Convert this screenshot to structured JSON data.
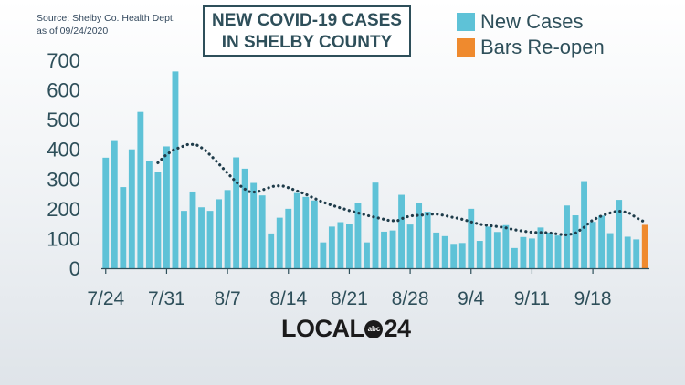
{
  "source": {
    "line1": "Source:  Shelby Co. Health Dept.",
    "line2": "as of 09/24/2020"
  },
  "title": {
    "line1": "NEW COVID-19 CASES",
    "line2": "IN SHELBY COUNTY"
  },
  "legend": {
    "new_cases": "New Cases",
    "bars_reopen": "Bars Re-open"
  },
  "colors": {
    "new_cases": "#5ec2d7",
    "bars_reopen": "#ef8a2e",
    "trend": "#1f3c4a",
    "text": "#2e4f5a"
  },
  "logo": {
    "word": "LOCAL",
    "badge": "abc",
    "number": "24"
  },
  "chart_data": {
    "type": "bar",
    "start_date": "7/24",
    "x_tick_labels": [
      "7/24",
      "7/31",
      "8/7",
      "8/14",
      "8/21",
      "8/28",
      "9/4",
      "9/11",
      "9/18"
    ],
    "y_tick_labels": [
      "0",
      "100",
      "200",
      "300",
      "400",
      "500",
      "600",
      "700"
    ],
    "ylim": [
      0,
      700
    ],
    "grid": false,
    "legend_position": "top-right",
    "series": [
      {
        "name": "New Cases",
        "values": [
          372,
          428,
          273,
          400,
          526,
          360,
          323,
          410,
          662,
          193,
          258,
          205,
          193,
          232,
          263,
          373,
          335,
          287,
          245,
          117,
          170,
          200,
          253,
          240,
          228,
          87,
          140,
          155,
          148,
          218,
          87,
          288,
          123,
          127,
          247,
          147,
          220,
          190,
          120,
          108,
          82,
          85,
          200,
          92,
          140,
          122,
          145,
          68,
          105,
          100,
          137,
          120,
          110,
          211,
          178,
          293,
          156,
          177,
          118,
          230,
          106,
          97
        ]
      },
      {
        "name": "Bars Re-open",
        "values": [
          146
        ]
      }
    ],
    "trend_values": [
      355,
      380,
      398,
      408,
      418,
      415,
      400,
      375,
      348,
      320,
      293,
      270,
      255,
      258,
      268,
      276,
      278,
      270,
      260,
      250,
      238,
      226,
      216,
      208,
      200,
      192,
      185,
      178,
      172,
      166,
      160,
      160,
      172,
      177,
      178,
      182,
      182,
      178,
      172,
      167,
      160,
      152,
      146,
      143,
      140,
      136,
      130,
      126,
      122,
      120,
      120,
      118,
      114,
      112,
      118,
      135,
      158,
      172,
      182,
      190,
      192,
      185,
      168,
      155
    ]
  }
}
